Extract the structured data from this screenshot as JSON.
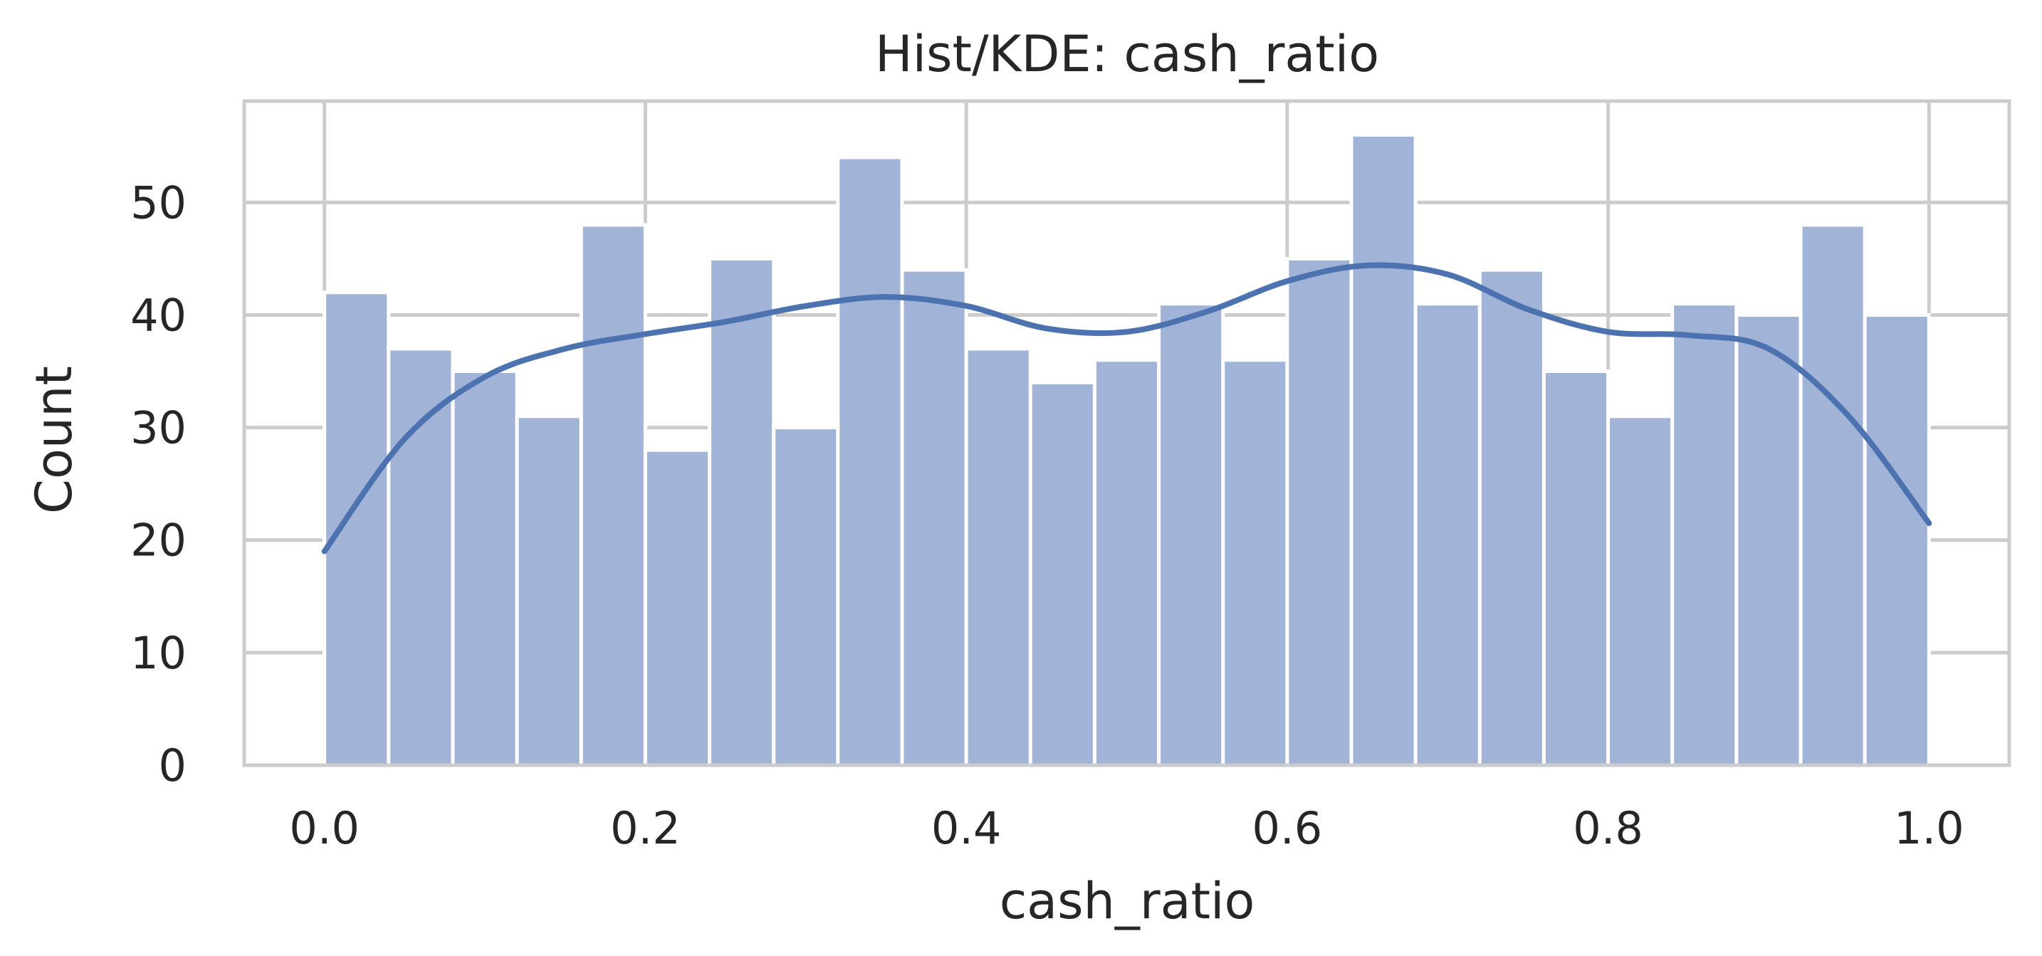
{
  "chart_data": {
    "type": "bar",
    "title": "Hist/KDE: cash_ratio",
    "xlabel": "cash_ratio",
    "ylabel": "Count",
    "xlim": [
      -0.05,
      1.05
    ],
    "ylim": [
      0,
      59
    ],
    "xticks": [
      0.0,
      0.2,
      0.4,
      0.6,
      0.8,
      1.0
    ],
    "xtick_labels": [
      "0.0",
      "0.2",
      "0.4",
      "0.6",
      "0.8",
      "1.0"
    ],
    "yticks": [
      0,
      10,
      20,
      30,
      40,
      50
    ],
    "ytick_labels": [
      "0",
      "10",
      "20",
      "30",
      "40",
      "50"
    ],
    "grid": true,
    "legend": "none",
    "bin_edges": [
      0.0,
      0.04,
      0.08,
      0.12,
      0.16,
      0.2,
      0.24,
      0.28,
      0.32,
      0.36,
      0.4,
      0.44,
      0.48,
      0.52,
      0.56,
      0.6,
      0.64,
      0.68,
      0.72,
      0.76,
      0.8,
      0.84,
      0.88,
      0.92,
      0.96,
      1.0
    ],
    "values": [
      42,
      37,
      35,
      31,
      48,
      28,
      45,
      30,
      54,
      44,
      37,
      34,
      36,
      41,
      36,
      45,
      56,
      41,
      44,
      35,
      31,
      41,
      40,
      48,
      40
    ],
    "kde": {
      "x": [
        0.0,
        0.05,
        0.1,
        0.15,
        0.2,
        0.25,
        0.3,
        0.35,
        0.4,
        0.45,
        0.5,
        0.55,
        0.6,
        0.65,
        0.7,
        0.75,
        0.8,
        0.85,
        0.9,
        0.95,
        1.0
      ],
      "y": [
        19,
        29,
        34.5,
        37,
        38.3,
        39.4,
        40.8,
        41.6,
        40.8,
        38.8,
        38.5,
        40.3,
        43,
        44.4,
        43.6,
        40.5,
        38.5,
        38.2,
        37,
        31,
        21.5
      ]
    },
    "colors": {
      "bar_fill": "#a1b4d8",
      "bar_edge": "#ffffff",
      "kde_line": "#4c72b0",
      "grid": "#cccccc",
      "frame": "#cccccc",
      "text": "#262626",
      "background": "#ffffff"
    }
  }
}
